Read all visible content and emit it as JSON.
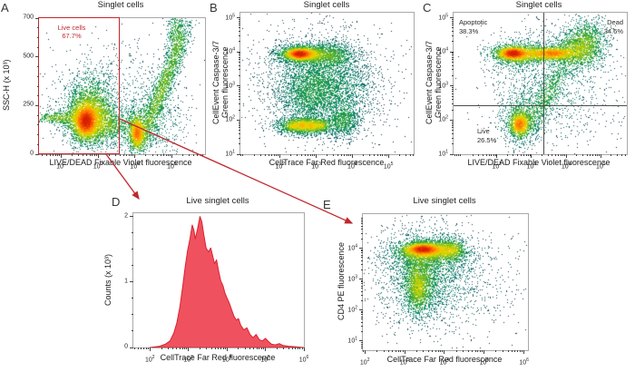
{
  "figure": {
    "background": "#ffffff"
  },
  "colors": {
    "gate_red": "#c1272d",
    "arrow_red": "#c1272d",
    "histogram_fill": "#f0515f",
    "histogram_stroke": "#d8232f",
    "quadrant_line": "#4d4d4d",
    "frame_gray": "#a9a9a9",
    "text": "#231f20",
    "density_ramp": [
      "#0e1116",
      "#114a56",
      "#0e8274",
      "#27a347",
      "#8cc41e",
      "#e6da00",
      "#ffa400",
      "#fb5d00",
      "#d81e00"
    ]
  },
  "panels": {
    "a": {
      "letter": "A",
      "title": "Singlet cells",
      "x_label": "LIVE/DEAD Fixable Violet fluorescence",
      "y_label": "SSC-H (x 10³)",
      "gate": {
        "line1": "Live cells",
        "line2": "67.7%"
      }
    },
    "b": {
      "letter": "B",
      "title": "Singlet cells",
      "x_label": "CellTrace Far Red fluorescence",
      "y_label_line1": "CellEvent Caspase-3/7",
      "y_label_line2": "Green fluorescence"
    },
    "c": {
      "letter": "C",
      "title": "Singlet cells",
      "x_label": "LIVE/DEAD Fixable Violet fluorescence",
      "y_label_line1": "CellEvent Caspase-3/7",
      "y_label_line2": "Green fluorescence",
      "quadrants": {
        "top_left_label": "Apoptotic",
        "top_left_pct": "38.3%",
        "top_right_label": "Dead",
        "top_right_pct": "34.6%",
        "bottom_left_label": "Live",
        "bottom_left_pct": "26.5%"
      }
    },
    "d": {
      "letter": "D",
      "title": "Live singlet cells",
      "x_label": "CellTrace Far Red fluorescence",
      "y_label": "Counts (x 10³)"
    },
    "e": {
      "letter": "E",
      "title": "Live singlet cells",
      "x_label": "CellTrace Far Red fluorescence",
      "y_label": "CD4 PE fluorescence"
    }
  },
  "chart_data": [
    {
      "id": "a",
      "type": "scatter",
      "subtype": "pseudocolor-density",
      "title": "Singlet cells",
      "xlabel": "LIVE/DEAD Fixable Violet fluorescence",
      "ylabel": "SSC-H (x 10³)",
      "x_scale": "log",
      "x_range_log10": [
        1.4,
        5.9
      ],
      "x_ticks_exp": [
        2,
        3,
        4,
        5
      ],
      "y_scale": "linear",
      "y_range": [
        0,
        700
      ],
      "y_ticks": [
        0,
        250,
        500,
        700
      ],
      "y_minor_step": 50,
      "gate": {
        "name": "Live cells",
        "percent": 67.7,
        "x_min_log10": 1.4,
        "x_max_log10": 3.61,
        "y_min": 0,
        "y_max": 700
      },
      "clusters": [
        {
          "x": 2.72,
          "y": 185,
          "sx": 0.3,
          "sy": 62,
          "n": 3600
        },
        {
          "x": 2.66,
          "y": 170,
          "sx": 0.14,
          "sy": 38,
          "n": 2600
        },
        {
          "x": 2.8,
          "y": 290,
          "sx": 0.33,
          "sy": 75,
          "n": 800
        },
        {
          "x": 1.85,
          "y": 190,
          "sx": 0.3,
          "sy": 16,
          "n": 400
        },
        {
          "x": 3.3,
          "y": 150,
          "sx": 0.28,
          "sy": 45,
          "n": 650
        },
        {
          "x": 4.05,
          "y": 110,
          "sx": 0.09,
          "sy": 38,
          "n": 1100
        },
        {
          "x": 4.05,
          "y": 130,
          "sx": 0.22,
          "sy": 55,
          "n": 700
        },
        {
          "x": 4.75,
          "y": 350,
          "sx": 0.38,
          "sy": 175,
          "rho": 0.93,
          "n": 1900
        },
        {
          "x": 5.1,
          "y": 620,
          "sx": 0.13,
          "sy": 70,
          "n": 450
        },
        {
          "x": 4.55,
          "y": 160,
          "sx": 0.45,
          "sy": 90,
          "n": 500
        },
        {
          "x": 3.45,
          "y": 300,
          "sx": 0.95,
          "sy": 150,
          "n": 800
        }
      ]
    },
    {
      "id": "b",
      "type": "scatter",
      "subtype": "pseudocolor-density",
      "title": "Singlet cells",
      "xlabel": "CellTrace Far Red fluorescence",
      "ylabel": "CellEvent Caspase-3/7 Green fluorescence",
      "x_scale": "log",
      "x_range_log10": [
        0.9,
        5.7
      ],
      "x_ticks_exp": [
        2,
        3,
        4,
        5
      ],
      "y_scale": "log",
      "y_range_log10": [
        1.0,
        5.15
      ],
      "y_ticks_exp": [
        1,
        2,
        3,
        4,
        5
      ],
      "clusters": [
        {
          "x": 2.6,
          "y": 3.95,
          "sx": 0.27,
          "sy": 0.1,
          "n": 2600
        },
        {
          "x": 2.52,
          "y": 3.95,
          "sx": 0.15,
          "sy": 0.07,
          "n": 1700
        },
        {
          "x": 2.85,
          "y": 3.93,
          "sx": 0.5,
          "sy": 0.17,
          "n": 1400
        },
        {
          "x": 3.45,
          "y": 3.9,
          "sx": 0.28,
          "sy": 0.2,
          "n": 650
        },
        {
          "x": 2.9,
          "y": 3.05,
          "sx": 0.55,
          "sy": 0.5,
          "n": 2200
        },
        {
          "x": 2.75,
          "y": 2.6,
          "sx": 0.35,
          "sy": 0.4,
          "n": 700
        },
        {
          "x": 3.7,
          "y": 2.95,
          "sx": 0.5,
          "sy": 0.55,
          "n": 1100
        },
        {
          "x": 2.7,
          "y": 1.85,
          "sx": 0.4,
          "sy": 0.13,
          "n": 2000
        },
        {
          "x": 2.35,
          "y": 1.85,
          "sx": 0.1,
          "sy": 0.08,
          "n": 330
        },
        {
          "x": 2.6,
          "y": 1.86,
          "sx": 0.08,
          "sy": 0.08,
          "n": 300
        },
        {
          "x": 2.85,
          "y": 1.85,
          "sx": 0.08,
          "sy": 0.08,
          "n": 280
        },
        {
          "x": 3.1,
          "y": 1.86,
          "sx": 0.1,
          "sy": 0.08,
          "n": 260
        },
        {
          "x": 3.75,
          "y": 2.0,
          "sx": 0.22,
          "sy": 0.25,
          "n": 750
        },
        {
          "x": 3.2,
          "y": 3.1,
          "sx": 1.05,
          "sy": 1.0,
          "n": 1400
        }
      ]
    },
    {
      "id": "c",
      "type": "scatter",
      "subtype": "pseudocolor-density",
      "title": "Singlet cells",
      "xlabel": "LIVE/DEAD Fixable Violet fluorescence",
      "ylabel": "CellEvent Caspase-3/7 Green fluorescence",
      "x_scale": "log",
      "x_range_log10": [
        0.75,
        5.75
      ],
      "x_ticks_exp": [
        2,
        3,
        4,
        5
      ],
      "y_scale": "log",
      "y_range_log10": [
        1.0,
        5.15
      ],
      "y_ticks_exp": [
        1,
        2,
        3,
        4,
        5
      ],
      "quadrant_gate": {
        "x_log10": 3.36,
        "y_log10": 2.41,
        "stats": [
          {
            "name": "Apoptotic",
            "percent": 38.3
          },
          {
            "name": "Dead",
            "percent": 34.6
          },
          {
            "name": "Live",
            "percent": 26.5
          }
        ]
      },
      "clusters": [
        {
          "x": 2.45,
          "y": 3.97,
          "sx": 0.18,
          "sy": 0.08,
          "n": 1400
        },
        {
          "x": 2.5,
          "y": 3.95,
          "sx": 0.35,
          "sy": 0.18,
          "n": 1000
        },
        {
          "x": 3.05,
          "y": 3.95,
          "sx": 0.55,
          "sy": 0.12,
          "n": 1500
        },
        {
          "x": 3.6,
          "y": 3.97,
          "sx": 0.28,
          "sy": 0.08,
          "n": 1100
        },
        {
          "x": 4.3,
          "y": 4.05,
          "sx": 0.35,
          "sy": 0.25,
          "n": 1300
        },
        {
          "x": 4.6,
          "y": 4.4,
          "sx": 0.3,
          "sy": 0.35,
          "n": 800
        },
        {
          "x": 2.65,
          "y": 1.88,
          "sx": 0.13,
          "sy": 0.16,
          "n": 1200
        },
        {
          "x": 2.68,
          "y": 2.05,
          "sx": 0.28,
          "sy": 0.35,
          "n": 800
        },
        {
          "x": 3.45,
          "y": 2.75,
          "sx": 0.4,
          "sy": 0.65,
          "rho": 0.85,
          "n": 850
        },
        {
          "x": 3.5,
          "y": 3.2,
          "sx": 0.95,
          "sy": 0.95,
          "n": 1400
        }
      ]
    },
    {
      "id": "d",
      "type": "histogram",
      "title": "Live singlet cells",
      "xlabel": "CellTrace Far Red fluorescence",
      "ylabel": "Counts (x 10³)",
      "x_scale": "log",
      "x_range_log10": [
        1.57,
        6.0
      ],
      "x_ticks_exp": [
        2,
        3,
        4,
        5,
        6
      ],
      "y_scale": "linear",
      "y_range": [
        0,
        2.05
      ],
      "y_ticks": [
        0,
        1,
        2
      ],
      "y_minor_step": 0.25,
      "curve": [
        [
          2.0,
          0.0
        ],
        [
          2.25,
          0.02
        ],
        [
          2.4,
          0.05
        ],
        [
          2.52,
          0.1
        ],
        [
          2.62,
          0.22
        ],
        [
          2.7,
          0.38
        ],
        [
          2.78,
          0.62
        ],
        [
          2.85,
          0.92
        ],
        [
          2.92,
          1.25
        ],
        [
          2.98,
          1.48
        ],
        [
          3.04,
          1.66
        ],
        [
          3.1,
          1.87
        ],
        [
          3.14,
          1.8
        ],
        [
          3.18,
          1.66
        ],
        [
          3.24,
          1.82
        ],
        [
          3.3,
          2.0
        ],
        [
          3.35,
          1.92
        ],
        [
          3.4,
          1.72
        ],
        [
          3.46,
          1.52
        ],
        [
          3.52,
          1.46
        ],
        [
          3.58,
          1.52
        ],
        [
          3.63,
          1.4
        ],
        [
          3.68,
          1.28
        ],
        [
          3.73,
          1.34
        ],
        [
          3.78,
          1.18
        ],
        [
          3.84,
          1.02
        ],
        [
          3.9,
          0.94
        ],
        [
          3.95,
          0.83
        ],
        [
          4.0,
          0.76
        ],
        [
          4.06,
          0.68
        ],
        [
          4.12,
          0.58
        ],
        [
          4.18,
          0.48
        ],
        [
          4.24,
          0.42
        ],
        [
          4.3,
          0.44
        ],
        [
          4.36,
          0.34
        ],
        [
          4.44,
          0.27
        ],
        [
          4.52,
          0.3
        ],
        [
          4.6,
          0.2
        ],
        [
          4.68,
          0.15
        ],
        [
          4.76,
          0.2
        ],
        [
          4.84,
          0.12
        ],
        [
          4.92,
          0.1
        ],
        [
          5.0,
          0.14
        ],
        [
          5.08,
          0.09
        ],
        [
          5.16,
          0.05
        ],
        [
          5.26,
          0.04
        ],
        [
          5.36,
          0.06
        ],
        [
          5.46,
          0.03
        ],
        [
          5.6,
          0.02
        ],
        [
          5.8,
          0.01
        ],
        [
          6.0,
          0.0
        ]
      ]
    },
    {
      "id": "e",
      "type": "scatter",
      "subtype": "pseudocolor-density",
      "title": "Live singlet cells",
      "xlabel": "CellTrace Far Red fluorescence",
      "ylabel": "CD4 PE fluorescence",
      "x_scale": "log",
      "x_range_log10": [
        1.95,
        6.1
      ],
      "x_ticks_exp": [
        2,
        3,
        4,
        5,
        6
      ],
      "y_scale": "log",
      "y_range_log10": [
        0.7,
        5.1
      ],
      "y_ticks_exp": [
        1,
        2,
        3,
        4
      ],
      "clusters": [
        {
          "x": 3.5,
          "y": 3.95,
          "sx": 0.32,
          "sy": 0.13,
          "n": 2400
        },
        {
          "x": 3.45,
          "y": 3.98,
          "sx": 0.18,
          "sy": 0.08,
          "n": 1500
        },
        {
          "x": 4.15,
          "y": 3.95,
          "sx": 0.18,
          "sy": 0.16,
          "n": 850
        },
        {
          "x": 3.6,
          "y": 3.8,
          "sx": 0.5,
          "sy": 0.3,
          "n": 1300
        },
        {
          "x": 3.35,
          "y": 2.9,
          "sx": 0.22,
          "sy": 0.55,
          "n": 1700
        },
        {
          "x": 3.33,
          "y": 2.7,
          "sx": 0.12,
          "sy": 0.3,
          "n": 600
        },
        {
          "x": 3.55,
          "y": 3.2,
          "sx": 0.6,
          "sy": 0.8,
          "n": 1300
        },
        {
          "x": 3.9,
          "y": 3.0,
          "sx": 1.0,
          "sy": 0.9,
          "n": 1100
        }
      ]
    }
  ]
}
